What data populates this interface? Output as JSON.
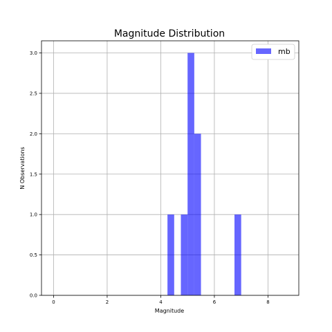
{
  "chart_data": {
    "type": "bar",
    "title": "Magnitude Distribution",
    "xlabel": "Magnitude",
    "ylabel": "N Observations",
    "xlim": [
      -0.45,
      9.15
    ],
    "ylim": [
      0,
      3.15
    ],
    "xticks": [
      0,
      2,
      4,
      6,
      8
    ],
    "xtick_labels": [
      "0",
      "2",
      "4",
      "6",
      "8"
    ],
    "yticks": [
      0.0,
      0.5,
      1.0,
      1.5,
      2.0,
      2.5,
      3.0
    ],
    "ytick_labels": [
      "0.0",
      "0.5",
      "1.0",
      "1.5",
      "2.0",
      "2.5",
      "3.0"
    ],
    "grid": true,
    "legend_position": "top-right",
    "series": [
      {
        "name": "mb",
        "color": "#0000ff",
        "opacity": 0.6,
        "bins": [
          {
            "x0": 4.25,
            "x1": 4.5,
            "value": 1
          },
          {
            "x0": 4.75,
            "x1": 5.0,
            "value": 1
          },
          {
            "x0": 5.0,
            "x1": 5.25,
            "value": 3
          },
          {
            "x0": 5.25,
            "x1": 5.5,
            "value": 2
          },
          {
            "x0": 6.75,
            "x1": 7.0,
            "value": 1
          }
        ]
      }
    ]
  }
}
